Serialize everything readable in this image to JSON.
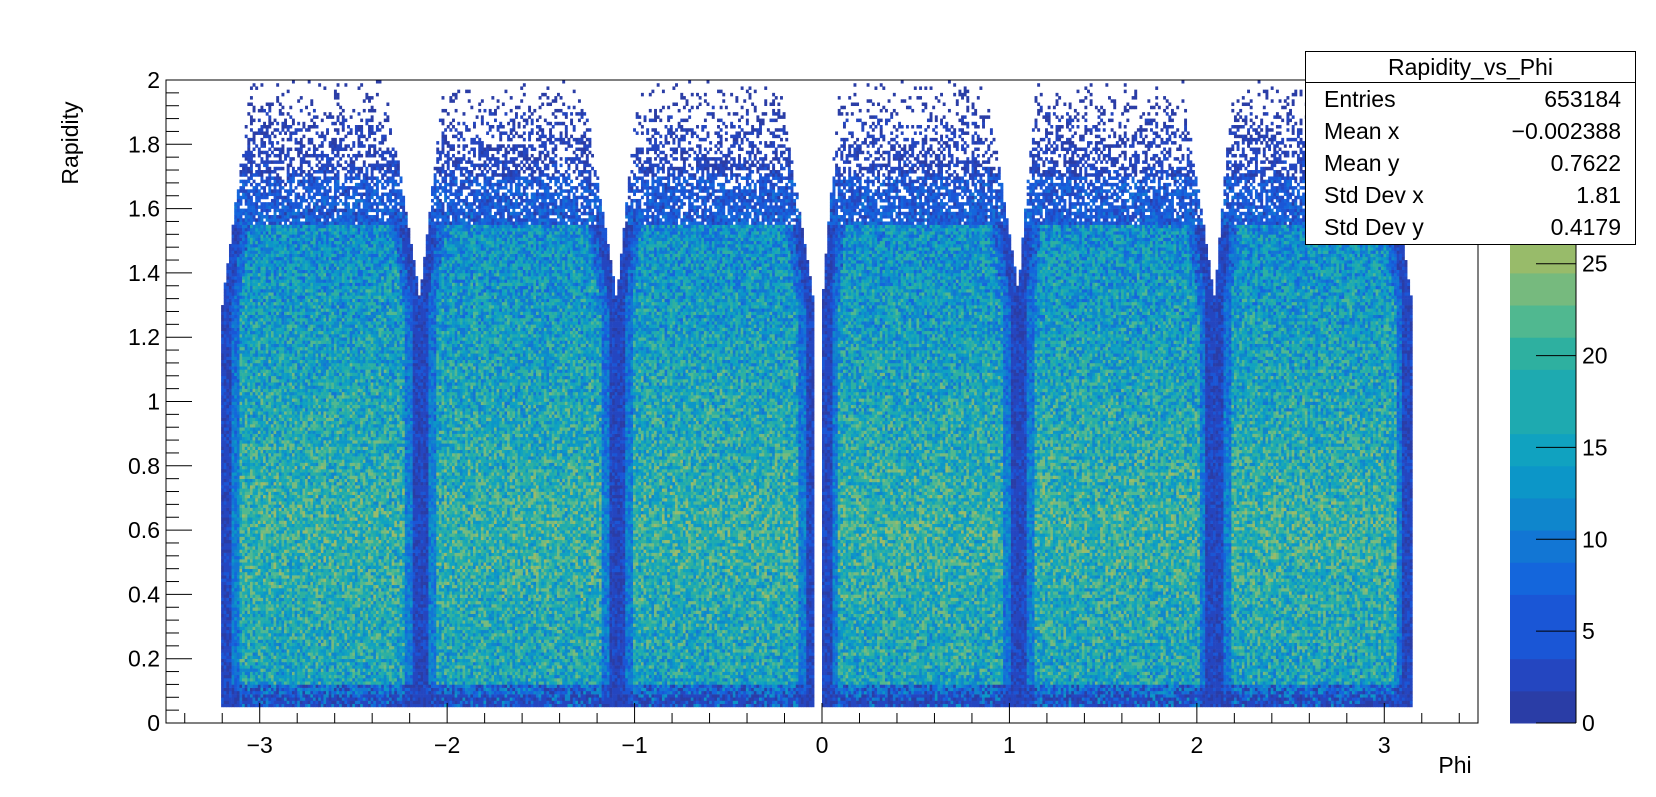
{
  "chart_data": {
    "type": "heatmap",
    "title": "",
    "xlabel": "Phi",
    "ylabel": "Rapidity",
    "xlim": [
      -3.5,
      3.5
    ],
    "ylim": [
      0,
      2
    ],
    "x_ticks": [
      -3,
      -2,
      -1,
      0,
      1,
      2,
      3
    ],
    "x_tick_labels": [
      "−3",
      "−2",
      "−1",
      "0",
      "1",
      "2",
      "3"
    ],
    "y_ticks": [
      0,
      0.2,
      0.4,
      0.6,
      0.8,
      1,
      1.2,
      1.4,
      1.6,
      1.8,
      2
    ],
    "y_tick_labels": [
      "0",
      "0.2",
      "0.4",
      "0.6",
      "0.8",
      "1",
      "1.2",
      "1.4",
      "1.6",
      "1.8",
      "2"
    ],
    "z_range": [
      0,
      35
    ],
    "z_ticks": [
      0,
      5,
      10,
      15,
      20,
      25,
      30
    ],
    "z_tick_labels": [
      "0",
      "5",
      "10",
      "15",
      "20",
      "25",
      "30"
    ],
    "sectors": [
      {
        "phi_min": -3.17,
        "phi_max": -2.17,
        "phi_top_min": -3.02,
        "phi_top_max": -2.35
      },
      {
        "phi_min": -2.12,
        "phi_max": -1.12,
        "phi_top_min": -1.99,
        "phi_top_max": -1.3
      },
      {
        "phi_min": -1.07,
        "phi_max": -0.07,
        "phi_top_min": -0.95,
        "phi_top_max": -0.25
      },
      {
        "phi_min": 0.03,
        "phi_max": 1.03,
        "phi_top_min": 0.12,
        "phi_top_max": 0.85
      },
      {
        "phi_min": 1.07,
        "phi_max": 2.07,
        "phi_top_min": 1.17,
        "phi_top_max": 1.9
      },
      {
        "phi_min": 2.12,
        "phi_max": 3.12,
        "phi_top_min": 2.22,
        "phi_top_max": 2.95
      }
    ],
    "rapidity_range": [
      0.05,
      1.97
    ],
    "peak_count": 32,
    "palette": [
      "#2a3da6",
      "#2446c0",
      "#1a56d6",
      "#1466dc",
      "#1276d4",
      "#0f86cc",
      "#0c96c8",
      "#10a2c0",
      "#1eaab0",
      "#2eb0a0",
      "#50b890",
      "#76ba7e",
      "#98bb6a",
      "#b8bb5c",
      "#d4b850",
      "#e8c040",
      "#f5d132"
    ]
  },
  "stats": {
    "title": "Rapidity_vs_Phi",
    "rows": [
      {
        "label": "Entries",
        "value": "653184"
      },
      {
        "label": "Mean x",
        "value": "−0.002388"
      },
      {
        "label": "Mean y",
        "value": "0.7622"
      },
      {
        "label": "Std Dev x",
        "value": "1.81"
      },
      {
        "label": "Std Dev y",
        "value": "0.4179"
      }
    ]
  }
}
